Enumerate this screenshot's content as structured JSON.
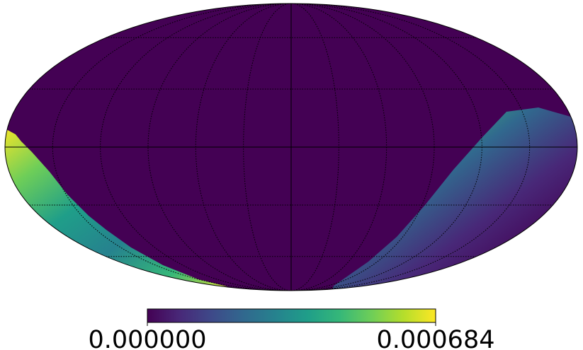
{
  "chart_data": {
    "type": "mollweide",
    "colormap": "viridis",
    "grid": true,
    "clim": [
      0,
      0.000684
    ],
    "cticks": [
      {
        "value": 0,
        "label": "0.000000"
      },
      0.000684
    ]
  }
}
